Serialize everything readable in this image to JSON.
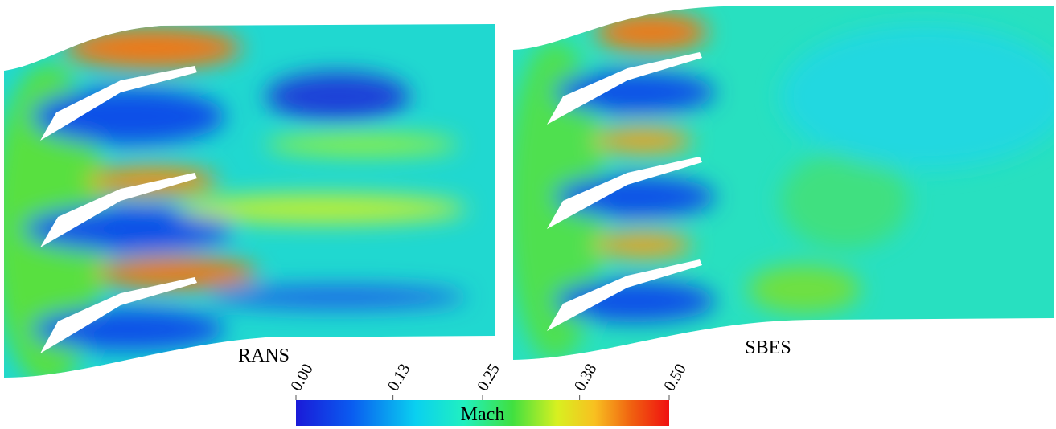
{
  "panels": [
    {
      "label": "RANS"
    },
    {
      "label": "SBES"
    }
  ],
  "colorbar": {
    "label": "Mach",
    "range": [
      0,
      0.5
    ],
    "ticks": [
      {
        "value": 0,
        "label": "0.00"
      },
      {
        "value": 0.13,
        "label": "0.13"
      },
      {
        "value": 0.25,
        "label": "0.25"
      },
      {
        "value": 0.38,
        "label": "0.38"
      },
      {
        "value": 0.5,
        "label": "0.50"
      }
    ]
  }
}
